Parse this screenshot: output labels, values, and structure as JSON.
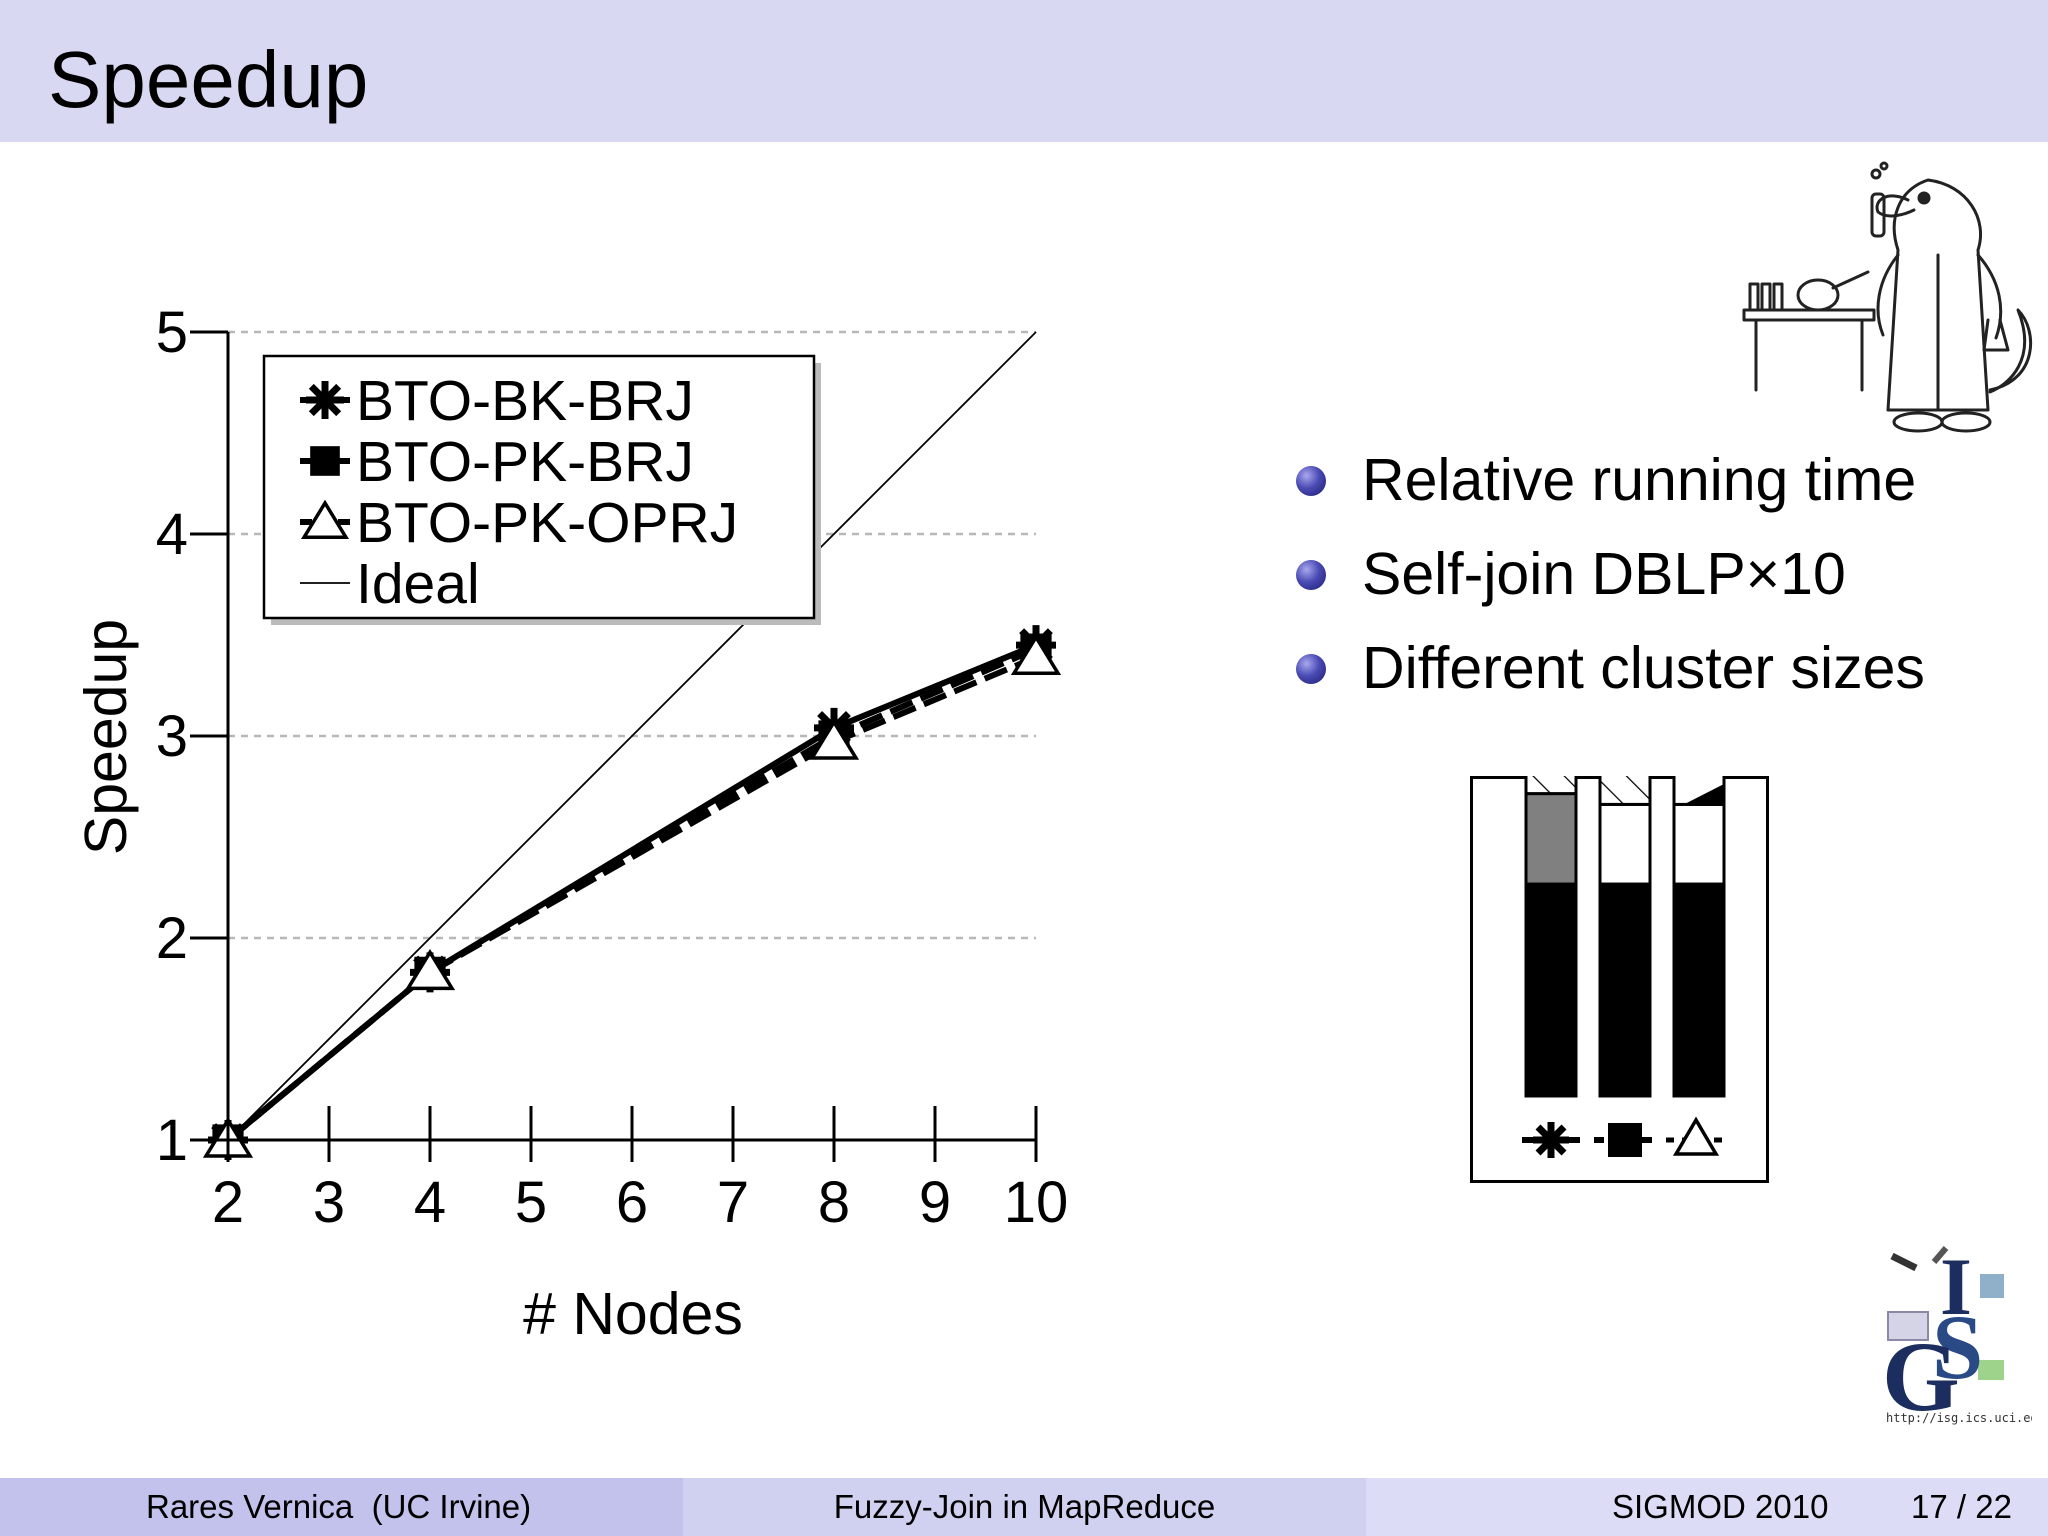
{
  "slide": {
    "title": "Speedup"
  },
  "bullets": [
    {
      "text": "Relative running time"
    },
    {
      "text": "Self-join DBLP×10"
    },
    {
      "text": "Different cluster sizes"
    }
  ],
  "footer": {
    "author": "Rares Vernica  (UC Irvine)",
    "talk": "Fuzzy-Join in MapReduce",
    "conference": "SIGMOD 2010",
    "page": "17 / 22"
  },
  "logo": {
    "url": "http://isg.ics.uci.edu"
  },
  "colors": {
    "title_bar": "#d8d8f2",
    "bullet": "#3a3aa0",
    "grid": "#b8b8b8"
  },
  "chart_data": {
    "type": "line",
    "xlabel": "# Nodes",
    "ylabel": "Speedup",
    "x_ticks": [
      2,
      3,
      4,
      5,
      6,
      7,
      8,
      9,
      10
    ],
    "y_ticks": [
      1,
      2,
      3,
      4,
      5
    ],
    "xlim": [
      2,
      10
    ],
    "ylim": [
      1,
      5
    ],
    "grid": "horizontal dashed",
    "legend_position": "top-left",
    "series": [
      {
        "name": "BTO-BK-BRJ",
        "marker": "asterisk",
        "dash": "solid",
        "x": [
          2,
          4,
          8,
          10
        ],
        "y": [
          1.0,
          1.83,
          3.04,
          3.45
        ]
      },
      {
        "name": "BTO-PK-BRJ",
        "marker": "square",
        "dash": "dashed",
        "x": [
          2,
          4,
          8,
          10
        ],
        "y": [
          1.0,
          1.83,
          3.0,
          3.43
        ]
      },
      {
        "name": "BTO-PK-OPRJ",
        "marker": "triangle",
        "dash": "dashed",
        "x": [
          2,
          4,
          8,
          10
        ],
        "y": [
          1.0,
          1.83,
          2.97,
          3.39
        ]
      },
      {
        "name": "Ideal",
        "marker": "none",
        "dash": "thin",
        "x": [
          2,
          10
        ],
        "y": [
          1,
          5
        ]
      }
    ]
  },
  "mini_chart": {
    "bars": [
      {
        "marker": "asterisk",
        "segments": [
          {
            "fill": "black",
            "value": 1.57
          },
          {
            "fill": "gray",
            "value": 0.67
          },
          {
            "fill": "hatch",
            "value": 0.41
          }
        ]
      },
      {
        "marker": "square",
        "segments": [
          {
            "fill": "black",
            "value": 1.57
          },
          {
            "fill": "white",
            "value": 0.59
          },
          {
            "fill": "hatch",
            "value": 0.41
          }
        ]
      },
      {
        "marker": "triangle",
        "segments": [
          {
            "fill": "black",
            "value": 1.57
          },
          {
            "fill": "white",
            "value": 0.59
          },
          {
            "fill": "split",
            "value": 0.24
          }
        ]
      }
    ]
  }
}
